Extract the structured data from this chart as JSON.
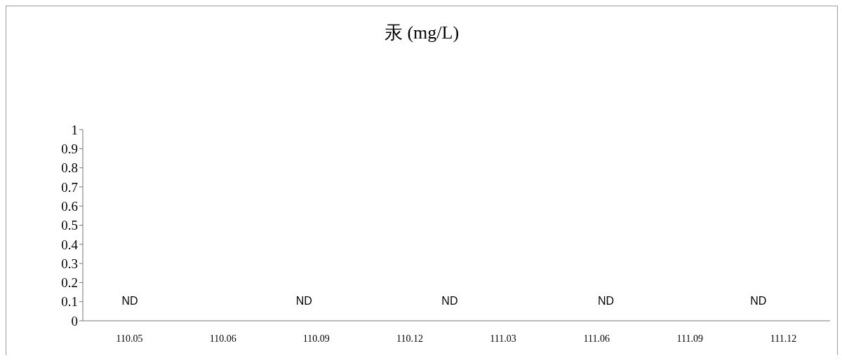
{
  "chart_data": {
    "type": "bar",
    "title": "汞 (mg/L)",
    "categories": [
      "110.05",
      "110.06",
      "110.09",
      "110.12",
      "111.03",
      "111.06",
      "111.09",
      "111.12"
    ],
    "values": [
      null,
      null,
      null,
      null,
      null,
      null,
      null,
      null
    ],
    "ylim": [
      0,
      1
    ],
    "yticks": [
      0,
      0.1,
      0.2,
      0.3,
      0.4,
      0.5,
      0.6,
      0.7,
      0.8,
      0.9,
      1
    ],
    "grid": false,
    "legend": false,
    "annotations": [
      "ND",
      "ND",
      "ND",
      "ND",
      "ND"
    ]
  }
}
